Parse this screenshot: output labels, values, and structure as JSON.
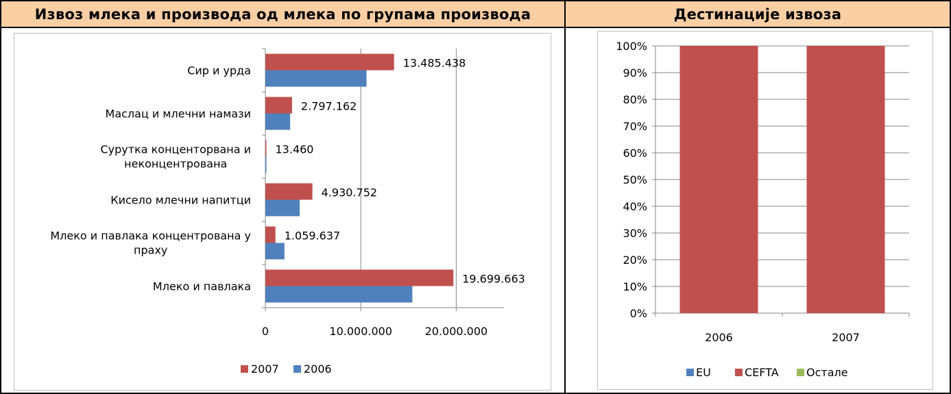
{
  "left_panel": {
    "title": "Извоз млека и производа од млека по групама производа"
  },
  "right_panel": {
    "title": "Дестинације извоза"
  },
  "colors": {
    "s2007": "#c0504d",
    "s2006": "#4f81bd",
    "ostale": "#9bbb59",
    "header_bg": "#fbcfa4",
    "grid": "#868686"
  },
  "chart_data": [
    {
      "type": "bar",
      "orientation": "horizontal",
      "categories": [
        [
          "Сир и урда"
        ],
        [
          "Маслац и млечни намази"
        ],
        [
          "Сурутка концентoрвана и",
          "неконцентрована"
        ],
        [
          "Кисело млечни напитци"
        ],
        [
          "Млеко и павлака концентрована у",
          "праху"
        ],
        [
          "Млеко и павлака"
        ]
      ],
      "series": [
        {
          "name": "2007",
          "values": [
            13485438,
            2797162,
            13460,
            4930752,
            1059637,
            19699663
          ]
        },
        {
          "name": "2006",
          "values": [
            10600000,
            2600000,
            60000,
            3600000,
            2000000,
            15400000
          ]
        }
      ],
      "data_labels": [
        "13.485.438",
        "2.797.162",
        "13.460",
        "4.930.752",
        "1.059.637",
        "19.699.663"
      ],
      "xlim": [
        0,
        25000000
      ],
      "xticks": [
        0,
        10000000,
        20000000
      ],
      "xtick_labels": [
        "0",
        "10.000.000",
        "20.000.000"
      ],
      "grid": true,
      "legend": {
        "placement": "bottom",
        "entries": [
          "2007",
          "2006"
        ]
      }
    },
    {
      "type": "bar",
      "stacked": "percent",
      "categories": [
        "2006",
        "2007"
      ],
      "series": [
        {
          "name": "EU",
          "values": [
            0,
            0
          ]
        },
        {
          "name": "CEFTA",
          "values": [
            100,
            100
          ]
        },
        {
          "name": "Остале",
          "values": [
            0,
            0
          ]
        }
      ],
      "ylim": [
        0,
        100
      ],
      "yticks": [
        0,
        10,
        20,
        30,
        40,
        50,
        60,
        70,
        80,
        90,
        100
      ],
      "ytick_labels": [
        "0%",
        "10%",
        "20%",
        "30%",
        "40%",
        "50%",
        "60%",
        "70%",
        "80%",
        "90%",
        "100%"
      ],
      "grid": true,
      "legend": {
        "placement": "bottom",
        "entries": [
          "EU",
          "CEFTA",
          "Остале"
        ]
      }
    }
  ]
}
